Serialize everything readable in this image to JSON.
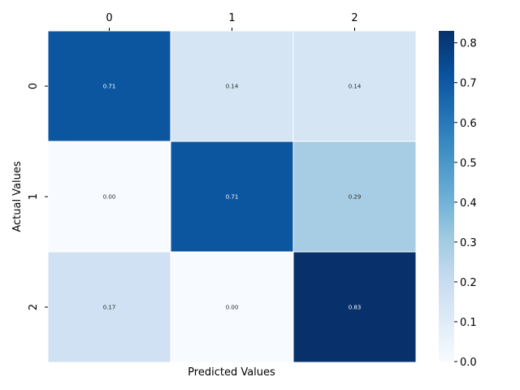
{
  "chart_data": {
    "type": "heatmap",
    "title": "",
    "xlabel": "Predicted Values",
    "ylabel": "Actual Values",
    "x_categories": [
      "0",
      "1",
      "2"
    ],
    "y_categories": [
      "0",
      "1",
      "2"
    ],
    "values": [
      [
        0.71,
        0.14,
        0.14
      ],
      [
        0.0,
        0.71,
        0.29
      ],
      [
        0.17,
        0.0,
        0.83
      ]
    ],
    "value_labels": [
      [
        "0.71",
        "0.14",
        "0.14"
      ],
      [
        "0.00",
        "0.71",
        "0.29"
      ],
      [
        "0.17",
        "0.00",
        "0.83"
      ]
    ],
    "x_tick_position": "top",
    "colormap": "Blues",
    "colorbar": {
      "min": 0.0,
      "max": 0.83,
      "ticks": [
        "0.0",
        "0.1",
        "0.2",
        "0.3",
        "0.4",
        "0.5",
        "0.6",
        "0.7",
        "0.8"
      ]
    },
    "grid": false
  }
}
